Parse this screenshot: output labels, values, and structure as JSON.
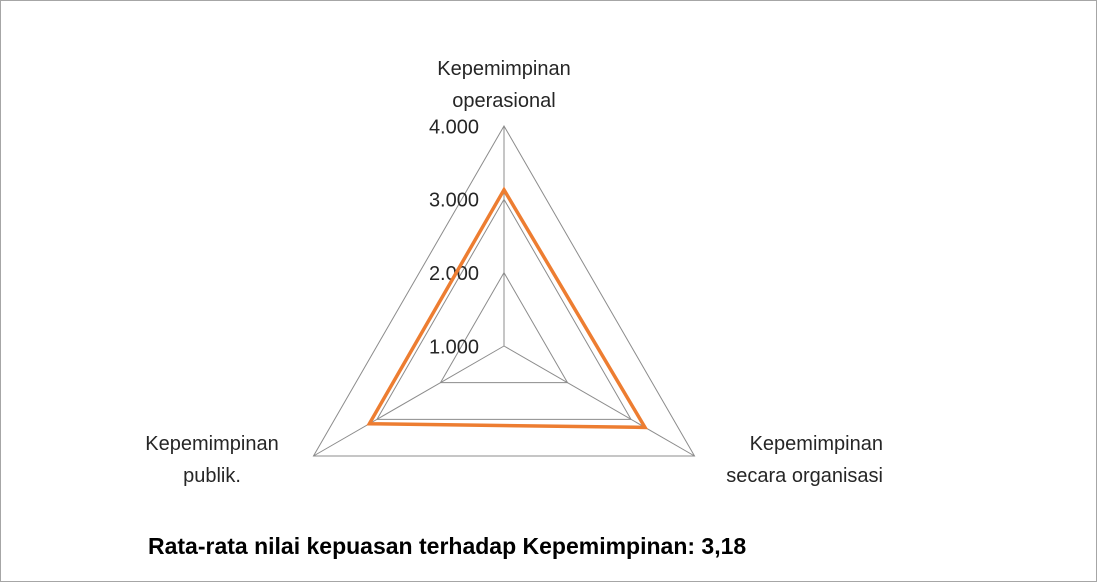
{
  "chart_data": {
    "type": "radar",
    "title": "Rata-rata nilai kepuasan terhadap Kepemimpinan: 3,18",
    "categories": [
      "Kepemimpinan operasional",
      "Kepemimpinan secara organisasi",
      "Kepemimpinan publik."
    ],
    "series": [
      {
        "name": "Rata-rata",
        "color": "#ed7d31",
        "values": [
          3.13,
          3.22,
          3.12
        ]
      }
    ],
    "ylim": [
      1,
      4
    ],
    "yticks": [
      {
        "value": 1,
        "label": "1.000"
      },
      {
        "value": 2,
        "label": "2.000"
      },
      {
        "value": 3,
        "label": "3.000"
      },
      {
        "value": 4,
        "label": "4.000"
      }
    ],
    "grid": true
  }
}
